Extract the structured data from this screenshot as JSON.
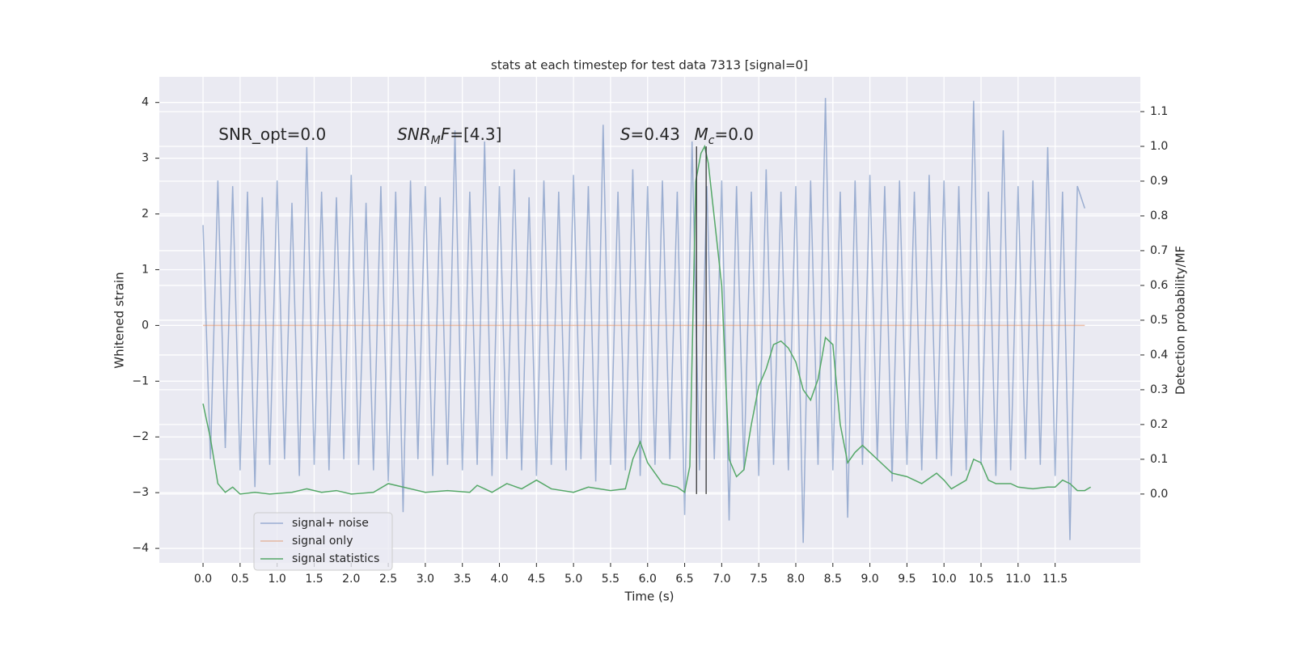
{
  "chart_data": {
    "type": "line",
    "title": "stats at each timestep for test data 7313 [signal=0]",
    "xlabel": "Time (s)",
    "ylabel": "Whitened strain",
    "y2label": "Detection probability/MF",
    "xlim": [
      -0.59,
      12.65
    ],
    "ylim": [
      -4.26,
      4.46
    ],
    "y2lim": [
      -0.198,
      1.2
    ],
    "xticks": [
      {
        "value": 0,
        "label": "0.0"
      },
      0.5,
      {
        "value": 1,
        "label": "1.0"
      },
      1.5,
      {
        "value": 2,
        "label": "2.0"
      },
      2.5,
      {
        "value": 3,
        "label": "3.0"
      },
      3.5,
      {
        "value": 4,
        "label": "4.0"
      },
      4.5,
      {
        "value": 5,
        "label": "5.0"
      },
      5.5,
      {
        "value": 6,
        "label": "6.0"
      },
      6.5,
      {
        "value": 7,
        "label": "7.0"
      },
      7.5,
      {
        "value": 8,
        "label": "8.0"
      },
      8.5,
      {
        "value": 9,
        "label": "9.0"
      },
      9.5,
      {
        "value": 10,
        "label": "10.0"
      },
      10.5,
      {
        "value": 11,
        "label": "11.0"
      },
      11.5
    ],
    "yticks": [
      {
        "value": -4,
        "label": "−4"
      },
      {
        "value": -3,
        "label": "−3"
      },
      {
        "value": -2,
        "label": "−2"
      },
      {
        "value": -1,
        "label": "−1"
      },
      0,
      1,
      2,
      3,
      4
    ],
    "y2ticks": [
      {
        "value": 0,
        "label": "0.0"
      },
      0.1,
      0.2,
      0.3,
      0.4,
      0.5,
      0.6,
      0.7,
      0.8,
      0.9,
      {
        "value": 1,
        "label": "1.0"
      },
      1.1
    ],
    "grid": true,
    "legend_loc": "lower left",
    "series": [
      {
        "name": "signal+ noise",
        "color": "#4c72b0",
        "opacity": 0.5,
        "x": [
          0.0,
          0.1,
          0.2,
          0.3,
          0.4,
          0.5,
          0.6,
          0.7,
          0.8,
          0.9,
          1.0,
          1.1,
          1.2,
          1.3,
          1.4,
          1.5,
          1.6,
          1.7,
          1.8,
          1.9,
          2.0,
          2.1,
          2.2,
          2.3,
          2.4,
          2.5,
          2.6,
          2.7,
          2.8,
          2.9,
          3.0,
          3.1,
          3.2,
          3.3,
          3.4,
          3.5,
          3.6,
          3.7,
          3.8,
          3.9,
          4.0,
          4.1,
          4.2,
          4.3,
          4.4,
          4.5,
          4.6,
          4.7,
          4.8,
          4.9,
          5.0,
          5.1,
          5.2,
          5.3,
          5.4,
          5.5,
          5.6,
          5.7,
          5.8,
          5.9,
          6.0,
          6.1,
          6.2,
          6.3,
          6.4,
          6.5,
          6.6,
          6.7,
          6.8,
          6.9,
          7.0,
          7.1,
          7.2,
          7.3,
          7.4,
          7.5,
          7.6,
          7.7,
          7.8,
          7.9,
          8.0,
          8.1,
          8.2,
          8.3,
          8.4,
          8.5,
          8.6,
          8.7,
          8.8,
          8.9,
          9.0,
          9.1,
          9.2,
          9.3,
          9.4,
          9.5,
          9.6,
          9.7,
          9.8,
          9.9,
          10.0,
          10.1,
          10.2,
          10.3,
          10.4,
          10.5,
          10.6,
          10.7,
          10.8,
          10.9,
          11.0,
          11.1,
          11.2,
          11.3,
          11.4,
          11.5,
          11.6,
          11.7,
          11.8,
          11.9
        ],
        "values": [
          1.8,
          -2.4,
          2.6,
          -2.2,
          2.5,
          -2.6,
          2.4,
          -2.9,
          2.3,
          -2.5,
          2.6,
          -2.4,
          2.2,
          -2.7,
          3.2,
          -2.5,
          2.4,
          -2.6,
          2.3,
          -2.4,
          2.7,
          -2.5,
          2.2,
          -2.6,
          2.5,
          -2.8,
          2.4,
          -3.35,
          2.6,
          -2.4,
          2.5,
          -2.7,
          2.3,
          -2.5,
          3.5,
          -2.6,
          2.4,
          -2.5,
          3.3,
          -2.7,
          2.5,
          -2.4,
          2.8,
          -2.6,
          2.3,
          -2.7,
          2.6,
          -2.5,
          2.4,
          -2.6,
          2.7,
          -2.4,
          2.5,
          -2.8,
          3.6,
          -2.5,
          2.4,
          -2.6,
          2.8,
          -2.7,
          2.5,
          -2.5,
          2.6,
          -2.4,
          2.4,
          -3.4,
          3.3,
          -2.6,
          2.5,
          -2.4,
          2.6,
          -3.5,
          2.5,
          -2.6,
          2.4,
          -2.7,
          2.8,
          -2.5,
          2.4,
          -2.6,
          2.5,
          -3.9,
          2.6,
          -2.5,
          4.08,
          -2.6,
          2.4,
          -3.45,
          2.6,
          -2.5,
          2.7,
          -2.4,
          2.5,
          -2.8,
          2.6,
          -2.5,
          2.4,
          -2.6,
          2.7,
          -2.4,
          2.6,
          -2.7,
          2.5,
          -2.6,
          4.03,
          -2.5,
          2.4,
          -2.7,
          3.5,
          -2.6,
          2.5,
          -2.4,
          2.6,
          -2.5,
          3.2,
          -2.7,
          2.4,
          -3.85,
          2.5,
          2.1
        ]
      },
      {
        "name": "signal only",
        "color": "#dd8452",
        "opacity": 0.5,
        "x": [
          0.0,
          11.9
        ],
        "values": [
          0,
          0
        ]
      },
      {
        "name": "signal statistics",
        "color": "#55a868",
        "opacity": 1,
        "axis": "y2",
        "x": [
          0.0,
          0.1,
          0.2,
          0.3,
          0.4,
          0.5,
          0.7,
          0.9,
          1.2,
          1.4,
          1.6,
          1.8,
          2.0,
          2.3,
          2.5,
          2.7,
          3.0,
          3.3,
          3.6,
          3.7,
          3.9,
          4.1,
          4.3,
          4.5,
          4.7,
          5.0,
          5.2,
          5.5,
          5.7,
          5.8,
          5.9,
          6.0,
          6.2,
          6.4,
          6.5,
          6.57,
          6.65,
          6.72,
          6.77,
          6.82,
          7.0,
          7.1,
          7.2,
          7.3,
          7.4,
          7.5,
          7.6,
          7.7,
          7.8,
          7.9,
          8.0,
          8.1,
          8.2,
          8.3,
          8.4,
          8.5,
          8.6,
          8.7,
          8.8,
          8.9,
          9.0,
          9.2,
          9.3,
          9.5,
          9.7,
          9.9,
          10.0,
          10.1,
          10.3,
          10.4,
          10.5,
          10.6,
          10.7,
          10.9,
          11.0,
          11.2,
          11.4,
          11.5,
          11.6,
          11.7,
          11.8,
          11.9,
          11.98
        ],
        "values": [
          0.26,
          0.16,
          0.03,
          0.005,
          0.02,
          0.0,
          0.005,
          0.0,
          0.005,
          0.015,
          0.005,
          0.01,
          0.0,
          0.005,
          0.03,
          0.02,
          0.005,
          0.01,
          0.005,
          0.025,
          0.005,
          0.03,
          0.015,
          0.04,
          0.015,
          0.005,
          0.02,
          0.01,
          0.015,
          0.1,
          0.15,
          0.09,
          0.03,
          0.02,
          0.005,
          0.08,
          0.9,
          0.98,
          1.0,
          0.95,
          0.6,
          0.1,
          0.05,
          0.07,
          0.2,
          0.31,
          0.36,
          0.43,
          0.44,
          0.42,
          0.38,
          0.3,
          0.27,
          0.33,
          0.45,
          0.43,
          0.2,
          0.09,
          0.12,
          0.14,
          0.12,
          0.08,
          0.06,
          0.05,
          0.03,
          0.06,
          0.04,
          0.015,
          0.04,
          0.1,
          0.09,
          0.04,
          0.03,
          0.03,
          0.02,
          0.015,
          0.02,
          0.02,
          0.04,
          0.03,
          0.01,
          0.01,
          0.02
        ]
      }
    ],
    "vlines": {
      "color": "#262626",
      "x": [
        6.66,
        6.79
      ],
      "y2": [
        0,
        1.0
      ]
    },
    "annotations": [
      {
        "x": 0.21,
        "y": 3.33,
        "parts": [
          {
            "text": "SNR_opt=0.0",
            "italic": false,
            "sub": false
          }
        ]
      },
      {
        "x": 2.62,
        "y": 3.33,
        "parts": [
          {
            "text": "SNR",
            "italic": true,
            "sub": false
          },
          {
            "text": "M",
            "italic": true,
            "sub": true
          },
          {
            "text": "F",
            "italic": true,
            "sub": false
          },
          {
            "text": "=[4.3]",
            "italic": false,
            "sub": false
          }
        ]
      },
      {
        "x": 5.63,
        "y": 3.33,
        "parts": [
          {
            "text": "S",
            "italic": true,
            "sub": false
          },
          {
            "text": "=0.43",
            "italic": false,
            "sub": false
          }
        ]
      },
      {
        "x": 6.63,
        "y": 3.33,
        "parts": [
          {
            "text": "M",
            "italic": true,
            "sub": false
          },
          {
            "text": "c",
            "italic": true,
            "sub": true
          },
          {
            "text": "=0.0",
            "italic": false,
            "sub": false
          }
        ]
      }
    ]
  }
}
